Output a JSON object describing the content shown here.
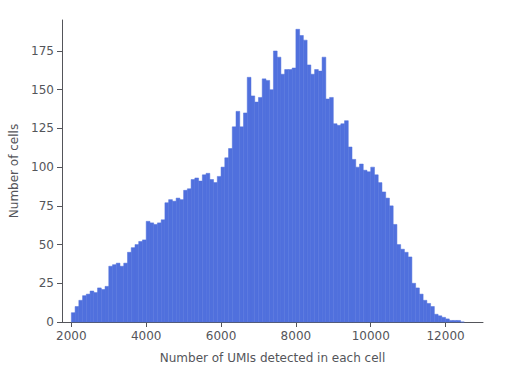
{
  "chart_data": {
    "type": "histogram",
    "xlabel": "Number of UMIs detected in each cell",
    "ylabel": "Number of cells",
    "bins": [
      2000,
      2100,
      2200,
      2300,
      2400,
      2500,
      2600,
      2700,
      2800,
      2900,
      3000,
      3100,
      3200,
      3300,
      3400,
      3500,
      3600,
      3700,
      3800,
      3900,
      4000,
      4100,
      4200,
      4300,
      4400,
      4500,
      4600,
      4700,
      4800,
      4900,
      5000,
      5100,
      5200,
      5300,
      5400,
      5500,
      5600,
      5700,
      5800,
      5900,
      6000,
      6100,
      6200,
      6300,
      6400,
      6500,
      6600,
      6700,
      6800,
      6900,
      7000,
      7100,
      7200,
      7300,
      7400,
      7500,
      7600,
      7700,
      7800,
      7900,
      8000,
      8100,
      8200,
      8300,
      8400,
      8500,
      8600,
      8700,
      8800,
      8900,
      9000,
      9100,
      9200,
      9300,
      9400,
      9500,
      9600,
      9700,
      9800,
      9900,
      10000,
      10100,
      10200,
      10300,
      10400,
      10500,
      10600,
      10700,
      10800,
      10900,
      11000,
      11100,
      11200,
      11300,
      11400,
      11500,
      11600,
      11700,
      11800,
      11900,
      12000,
      12100,
      12200,
      12300,
      12400,
      12500
    ],
    "values": [
      6,
      10,
      14,
      17,
      18,
      20,
      19,
      22,
      21,
      23,
      36,
      37,
      38,
      36,
      38,
      45,
      48,
      50,
      52,
      53,
      65,
      64,
      63,
      64,
      66,
      77,
      79,
      78,
      80,
      79,
      85,
      86,
      92,
      93,
      91,
      95,
      96,
      92,
      90,
      94,
      100,
      106,
      112,
      126,
      136,
      126,
      135,
      158,
      146,
      142,
      145,
      157,
      156,
      150,
      175,
      171,
      160,
      163,
      163,
      164,
      189,
      185,
      182,
      166,
      160,
      163,
      162,
      171,
      144,
      145,
      128,
      127,
      128,
      130,
      113,
      105,
      100,
      102,
      98,
      97,
      100,
      95,
      90,
      84,
      80,
      75,
      63,
      50,
      47,
      45,
      42,
      25,
      22,
      18,
      14,
      12,
      10,
      5,
      4,
      3,
      2,
      1,
      1,
      1,
      0
    ],
    "xlim": [
      1750,
      13000
    ],
    "ylim": [
      0,
      195
    ],
    "xticks": [
      2000,
      4000,
      6000,
      8000,
      10000,
      12000
    ],
    "yticks": [
      0,
      25,
      50,
      75,
      100,
      125,
      150,
      175
    ],
    "grid": false
  }
}
